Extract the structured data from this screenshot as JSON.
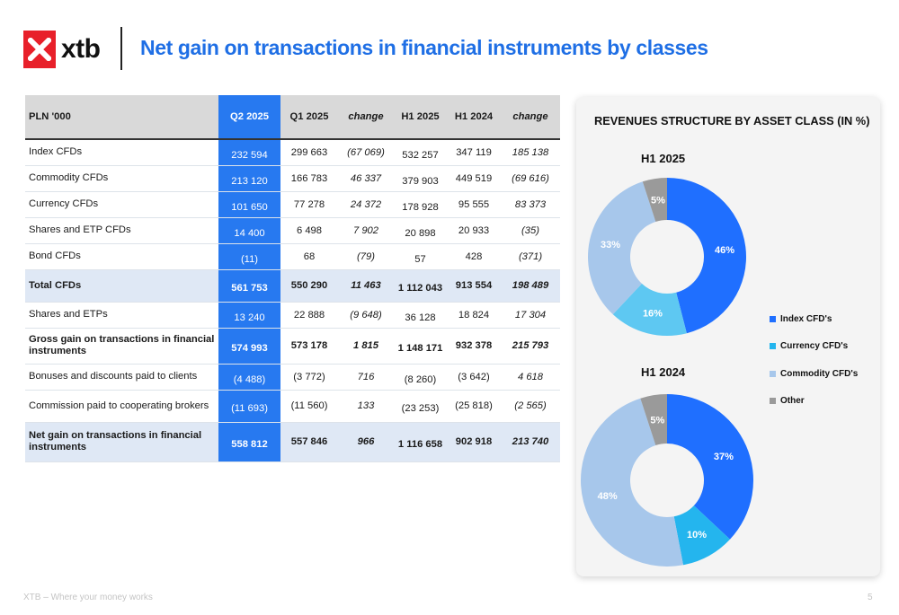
{
  "brand": {
    "logo_text": "xtb"
  },
  "page_title": "Net gain on transactions in financial instruments by classes",
  "table": {
    "headers": [
      "PLN '000",
      "Q2 2025",
      "Q1 2025",
      "change",
      "H1 2025",
      "H1  2024",
      "change"
    ],
    "rows": [
      [
        "Index CFDs",
        "232 594",
        "299 663",
        "(67 069)",
        "532 257",
        "347 119",
        "185 138"
      ],
      [
        "Commodity CFDs",
        "213 120",
        "166 783",
        "46 337",
        "379 903",
        "449 519",
        "(69 616)"
      ],
      [
        "Currency CFDs",
        "101 650",
        "77 278",
        "24 372",
        "178 928",
        "95 555",
        "83 373"
      ],
      [
        "Shares and ETP CFDs",
        "14 400",
        "6 498",
        "7 902",
        "20 898",
        "20 933",
        "(35)"
      ],
      [
        "Bond CFDs",
        "(11)",
        "68",
        "(79)",
        "57",
        "428",
        "(371)"
      ],
      [
        "Total CFDs",
        "561 753",
        "550 290",
        "11 463",
        "1 112 043",
        "913 554",
        "198 489"
      ],
      [
        "Shares and ETPs",
        "13 240",
        "22 888",
        "(9 648)",
        "36 128",
        "18 824",
        "17 304"
      ],
      [
        "Gross gain on transactions in financial instruments",
        "574 993",
        "573 178",
        "1 815",
        "1 148 171",
        "932 378",
        "215 793"
      ],
      [
        "Bonuses and discounts paid to clients",
        "(4 488)",
        "(3 772)",
        "716",
        "(8 260)",
        "(3 642)",
        "4 618"
      ],
      [
        "Commission paid to cooperating brokers",
        "(11 693)",
        "(11 560)",
        "133",
        "(23 253)",
        "(25 818)",
        "(2 565)"
      ],
      [
        "Net gain on transactions in financial instruments",
        "558 812",
        "557 846",
        "966",
        "1 116 658",
        "902 918",
        "213 740"
      ]
    ]
  },
  "chart_data": [
    {
      "type": "pie",
      "donut": true,
      "title": "REVENUES STRUCTURE BY ASSET CLASS (IN %)",
      "subtitle": "H1 2025",
      "categories": [
        "Index CFD's",
        "Currency CFD's",
        "Commodity CFD's",
        "Other"
      ],
      "values": [
        46,
        16,
        33,
        5
      ],
      "data_labels": [
        "46%",
        "16%",
        "33%",
        "5%"
      ],
      "colors": [
        "#1f6fff",
        "#5ec8f2",
        "#a7c7eb",
        "#9a9a9a"
      ]
    },
    {
      "type": "pie",
      "donut": true,
      "subtitle": "H1 2024",
      "categories": [
        "Index CFD's",
        "Currency CFD's",
        "Commodity CFD's",
        "Other"
      ],
      "values": [
        37,
        10,
        48,
        5
      ],
      "data_labels": [
        "37%",
        "10%",
        "48%",
        "5%"
      ],
      "colors": [
        "#1f6fff",
        "#24b5ee",
        "#a7c7eb",
        "#9a9a9a"
      ]
    }
  ],
  "legend": [
    {
      "label": "Index CFD's",
      "color": "#1f6fff"
    },
    {
      "label": "Currency CFD's",
      "color": "#24b5ee"
    },
    {
      "label": "Commodity CFD's",
      "color": "#a7c7eb"
    },
    {
      "label": "Other",
      "color": "#9a9a9a"
    }
  ],
  "footer": {
    "tagline": "XTB – Where your money works",
    "page_number": "5"
  }
}
